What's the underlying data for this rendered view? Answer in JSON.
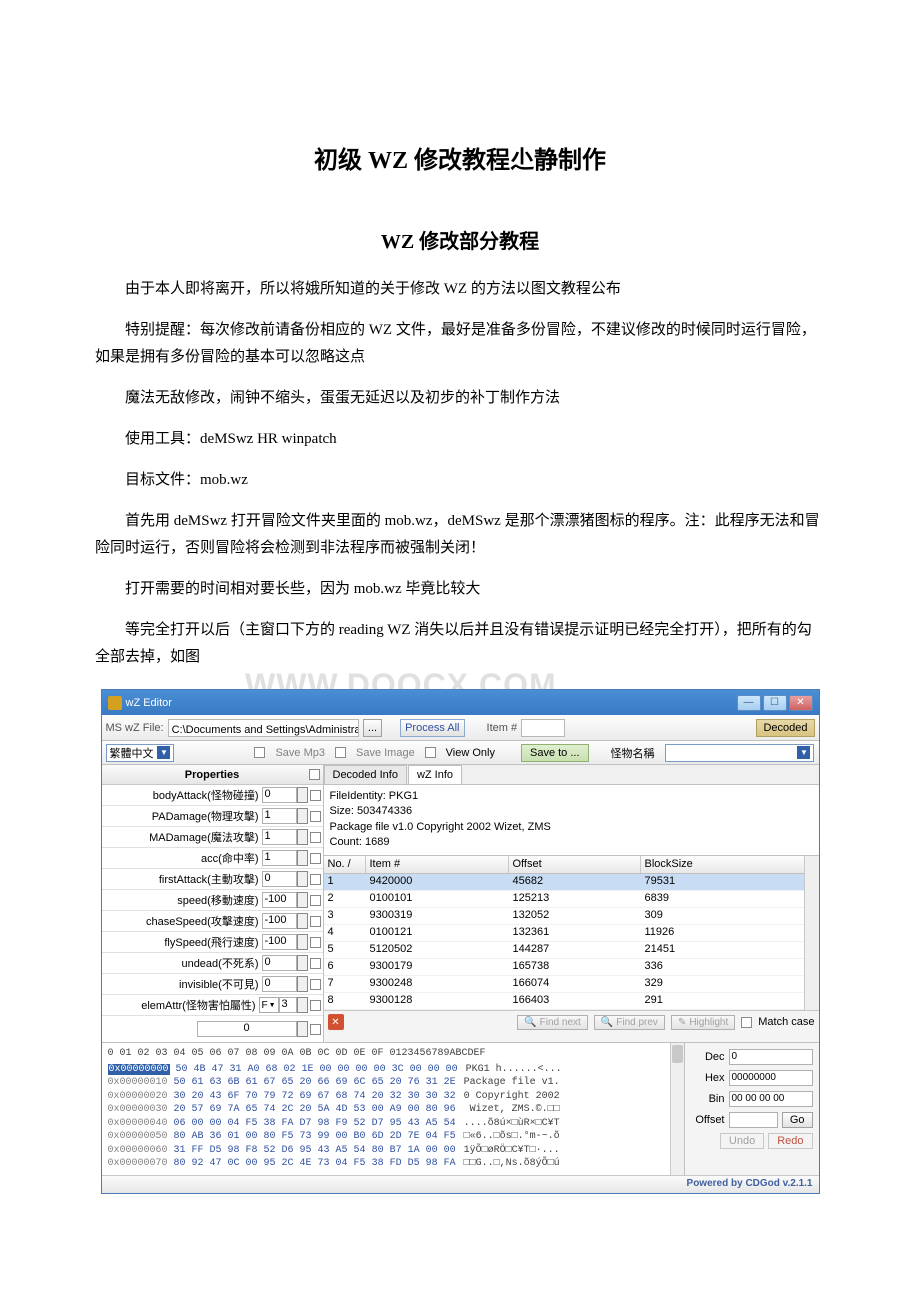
{
  "doc": {
    "title": "初级 WZ 修改教程尐静制作",
    "subtitle": "WZ 修改部分教程",
    "paragraphs": [
      "由于本人即将离开，所以将娥所知道的关于修改 WZ 的方法以图文教程公布",
      "特别提醒：每次修改前请备份相应的 WZ 文件，最好是准备多份冒险，不建议修改的时候同时运行冒险，如果是拥有多份冒险的基本可以忽略这点",
      "魔法无敌修改，闹钟不缩头，蛋蛋无延迟以及初步的补丁制作方法",
      "使用工具：deMSwz HR winpatch",
      "目标文件：mob.wz",
      "首先用 deMSwz 打开冒险文件夹里面的 mob.wz，deMSwz 是那个漂漂猪图标的程序。注：此程序无法和冒险同时运行，否则冒险将会检测到非法程序而被强制关闭！",
      "打开需要的时间相对要长些，因为 mob.wz 毕竟比较大",
      "等完全打开以后（主窗口下方的 reading WZ 消失以后并且没有错误提示证明已经完全打开），把所有的勾全部去掉，如图"
    ],
    "watermark": "WWW.DOOCX.COM"
  },
  "app": {
    "title": "wZ Editor",
    "file_label": "MS wZ File:",
    "file_path": "C:\\Documents and Settings\\Administrator\\桌面\\wpatch13",
    "browse_btn": "...",
    "process_all": "Process All",
    "item_num_label": "Item #",
    "decoded_label": "Decoded",
    "lang_dropdown": "繁體中文",
    "save_mp3": "Save Mp3",
    "save_image": "Save Image",
    "view_only": "View Only",
    "save_to": "Save to ...",
    "monster_name": "怪物名稱",
    "properties_header": "Properties",
    "props": [
      {
        "label": "bodyAttack(怪物碰撞)",
        "val": "0"
      },
      {
        "label": "PADamage(物理攻擊)",
        "val": "1"
      },
      {
        "label": "MADamage(魔法攻擊)",
        "val": "1"
      },
      {
        "label": "acc(命中率)",
        "val": "1"
      },
      {
        "label": "firstAttack(主動攻擊)",
        "val": "0"
      },
      {
        "label": "speed(移動速度)",
        "val": "-100"
      },
      {
        "label": "chaseSpeed(攻擊速度)",
        "val": "-100"
      },
      {
        "label": "flySpeed(飛行速度)",
        "val": "-100"
      },
      {
        "label": "undead(不死系)",
        "val": "0"
      },
      {
        "label": "invisible(不可見)",
        "val": "0"
      }
    ],
    "elem_attr": {
      "label": "elemAttr(怪物害怕屬性)",
      "dd": "F",
      "val": "3"
    },
    "bottom_val": "0",
    "tabs": {
      "decoded_info": "Decoded Info",
      "wz_info": "wZ Info"
    },
    "info": {
      "l1": "FileIdentity: PKG1",
      "l2": "Size: 503474336",
      "l3": "Package file v1.0 Copyright 2002 Wizet, ZMS",
      "l4": "Count: 1689"
    },
    "table_headers": {
      "no": "No.",
      "item": "Item #",
      "offset": "Offset",
      "block": "BlockSize"
    },
    "table_rows": [
      {
        "no": "1",
        "item": "9420000",
        "offset": "45682",
        "block": "79531"
      },
      {
        "no": "2",
        "item": "0100101",
        "offset": "125213",
        "block": "6839"
      },
      {
        "no": "3",
        "item": "9300319",
        "offset": "132052",
        "block": "309"
      },
      {
        "no": "4",
        "item": "0100121",
        "offset": "132361",
        "block": "11926"
      },
      {
        "no": "5",
        "item": "5120502",
        "offset": "144287",
        "block": "21451"
      },
      {
        "no": "6",
        "item": "9300179",
        "offset": "165738",
        "block": "336"
      },
      {
        "no": "7",
        "item": "9300248",
        "offset": "166074",
        "block": "329"
      },
      {
        "no": "8",
        "item": "9300128",
        "offset": "166403",
        "block": "291"
      }
    ],
    "find_bar": {
      "find_next": "Find next",
      "find_prev": "Find prev",
      "highlight": "Highlight",
      "match_case": "Match case"
    },
    "hex": {
      "header": " 0 01 02 03 04 05 06 07 08 09 0A 0B 0C 0D 0E 0F  0123456789ABCDEF",
      "rows": [
        {
          "addr": "0x00000000",
          "bytes": "50 4B 47 31 A0 68 02 1E 00 00 00 00 3C 00 00 00",
          "ascii": "PKG1 h......<..."
        },
        {
          "addr": "0x00000010",
          "bytes": "50 61 63 6B 61 67 65 20 66 69 6C 65 20 76 31 2E",
          "ascii": "Package file v1."
        },
        {
          "addr": "0x00000020",
          "bytes": "30 20 43 6F 70 79 72 69 67 68 74 20 32 30 30 32",
          "ascii": "0 Copyright 2002"
        },
        {
          "addr": "0x00000030",
          "bytes": "20 57 69 7A 65 74 2C 20 5A 4D 53 00 A9 00 80 96",
          "ascii": " Wizet, ZMS.©.□□"
        },
        {
          "addr": "0x00000040",
          "bytes": "06 00 00 04 F5 38 FA D7 98 F9 52 D7 95 43 A5 54",
          "ascii": "....õ8ú×□ùR×□C¥T"
        },
        {
          "addr": "0x00000050",
          "bytes": "80 AB 36 01 00 80 F5 73 99 00 B0 6D 2D 7E 04 F5",
          "ascii": "□«6..□õs□.°m-~.õ"
        },
        {
          "addr": "0x00000060",
          "bytes": "31 FF D5 98 F8 52 D6 95 43 A5 54 80 B7 1A 00 00",
          "ascii": "1ÿÕ□øRÖ□C¥T□·..."
        },
        {
          "addr": "0x00000070",
          "bytes": "80 92 47 0C 00 95 2C 4E 73 04 F5 38 FD D5 98 FA",
          "ascii": "□□G..□,Ns.õ8ýÕ□ú"
        }
      ]
    },
    "hex_controls": {
      "dec": {
        "l": "Dec",
        "v": "0"
      },
      "hex": {
        "l": "Hex",
        "v": "00000000"
      },
      "bin": {
        "l": "Bin",
        "v": "00 00 00 00"
      },
      "offset": {
        "l": "Offset",
        "v": ""
      },
      "go": "Go",
      "undo": "Undo",
      "redo": "Redo"
    },
    "statusbar": "Powered by CDGod v.2.1.1"
  }
}
